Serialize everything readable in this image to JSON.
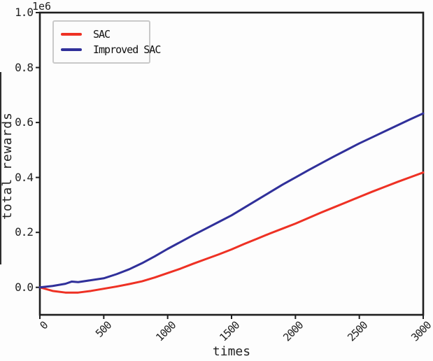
{
  "chart_data": {
    "type": "line",
    "xlabel": "times",
    "ylabel": "total rewards",
    "offset_text": "1e6",
    "x_range": [
      0,
      3000
    ],
    "y_range_1e6": [
      -0.1,
      1.0
    ],
    "grid": false,
    "x_tick_labels": [
      "0",
      "500",
      "1000",
      "1500",
      "2000",
      "2500",
      "3000"
    ],
    "y_tick_labels": [
      "0.0",
      "0.2",
      "0.4",
      "0.6",
      "0.8",
      "1.0"
    ],
    "legend": {
      "position": "upper-left",
      "entries": [
        {
          "label": "SAC",
          "color": "#ee3124"
        },
        {
          "label": "Improved SAC",
          "color": "#30309a"
        }
      ]
    },
    "series": [
      {
        "name": "SAC",
        "color": "#ee3124",
        "x": [
          0,
          100,
          200,
          300,
          400,
          500,
          600,
          700,
          800,
          900,
          1000,
          1100,
          1200,
          1300,
          1400,
          1500,
          1600,
          1700,
          1800,
          1900,
          2000,
          2100,
          2200,
          2300,
          2400,
          2500,
          2600,
          2700,
          2800,
          2900,
          3000
        ],
        "y_1e6": [
          0.0,
          -0.013,
          -0.019,
          -0.019,
          -0.013,
          -0.005,
          0.003,
          0.012,
          0.022,
          0.036,
          0.052,
          0.068,
          0.086,
          0.103,
          0.12,
          0.138,
          0.158,
          0.177,
          0.196,
          0.214,
          0.232,
          0.252,
          0.272,
          0.291,
          0.31,
          0.329,
          0.348,
          0.366,
          0.384,
          0.401,
          0.418
        ]
      },
      {
        "name": "Improved SAC",
        "color": "#30309a",
        "x": [
          0,
          100,
          200,
          250,
          300,
          400,
          500,
          600,
          700,
          800,
          900,
          1000,
          1100,
          1200,
          1300,
          1400,
          1500,
          1600,
          1700,
          1800,
          1900,
          2000,
          2100,
          2200,
          2300,
          2400,
          2500,
          2600,
          2700,
          2800,
          2900,
          3000
        ],
        "y_1e6": [
          0.0,
          0.005,
          0.013,
          0.021,
          0.019,
          0.026,
          0.033,
          0.048,
          0.066,
          0.088,
          0.113,
          0.14,
          0.165,
          0.19,
          0.214,
          0.238,
          0.262,
          0.29,
          0.318,
          0.346,
          0.374,
          0.4,
          0.426,
          0.451,
          0.476,
          0.5,
          0.524,
          0.546,
          0.568,
          0.59,
          0.612,
          0.633
        ]
      }
    ],
    "axis_color": "#1f1f1f"
  }
}
